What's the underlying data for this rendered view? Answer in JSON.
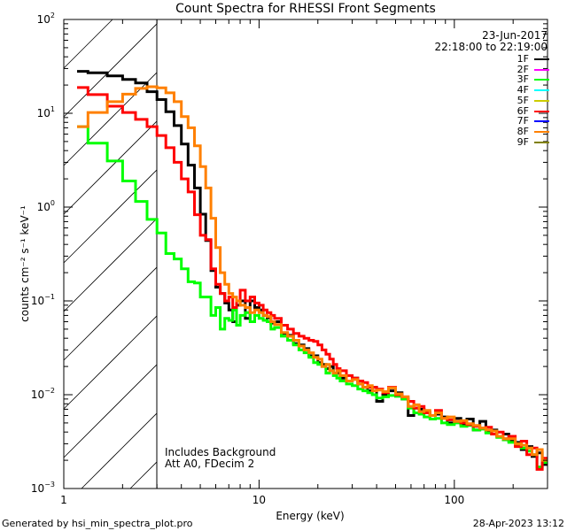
{
  "chart_data": {
    "type": "line",
    "title": "Count Spectra for RHESSI Front Segments",
    "xlabel": "Energy (keV)",
    "ylabel": "counts cm⁻² s⁻¹ keV⁻¹",
    "xscale": "log",
    "yscale": "log",
    "xlim": [
      1,
      300
    ],
    "ylim": [
      0.001,
      100
    ],
    "x_ticks": [
      "1",
      "10",
      "100"
    ],
    "y_ticks": [
      {
        "base": "10",
        "exp": "2"
      },
      {
        "base": "10",
        "exp": "1"
      },
      {
        "base": "10",
        "exp": "0"
      },
      {
        "base": "10",
        "exp": "−1"
      },
      {
        "base": "10",
        "exp": "−2"
      },
      {
        "base": "10",
        "exp": "−3"
      }
    ],
    "date": "23-Jun-2017",
    "time_range": "22:18:00 to 22:19:00",
    "annotations": [
      "Includes Background",
      "Att A0, FDecim 2"
    ],
    "excluded_region_keV": [
      1,
      3
    ],
    "energy_edges": [
      1.17,
      1.33,
      1.67,
      2.0,
      2.33,
      2.67,
      3.0,
      3.33,
      3.67,
      4.0,
      4.33,
      4.67,
      5.0,
      5.33,
      5.67,
      6.0,
      6.33,
      6.67,
      7.0,
      7.33,
      7.67,
      8.0,
      8.5,
      9,
      9.5,
      10,
      10.5,
      11,
      11.5,
      12,
      13,
      14,
      15,
      16,
      17,
      18,
      19,
      20,
      21,
      22,
      23,
      24,
      25,
      26,
      28,
      30,
      32,
      34,
      36,
      38,
      40,
      43,
      46,
      50,
      54,
      58,
      62,
      66,
      70,
      75,
      80,
      86,
      92,
      100,
      108,
      116,
      125,
      135,
      145,
      155,
      165,
      178,
      190,
      205,
      220,
      235,
      250,
      265,
      282,
      300
    ],
    "legend_position": "top-right",
    "legend": [
      {
        "name": "1F",
        "color": "#000000"
      },
      {
        "name": "2F",
        "color": "#ff00ff"
      },
      {
        "name": "3F",
        "color": "#00ff00"
      },
      {
        "name": "4F",
        "color": "#00ffff"
      },
      {
        "name": "5F",
        "color": "#cccc00"
      },
      {
        "name": "6F",
        "color": "#ff0000"
      },
      {
        "name": "7F",
        "color": "#0000ff"
      },
      {
        "name": "8F",
        "color": "#ff8000"
      },
      {
        "name": "9F",
        "color": "#808000"
      }
    ],
    "series": [
      {
        "name": "1F",
        "color": "#000000",
        "values": [
          28,
          27,
          25,
          23,
          21,
          17,
          14,
          10.4,
          7.4,
          4.7,
          2.8,
          1.6,
          0.84,
          0.44,
          0.21,
          0.14,
          0.12,
          0.095,
          0.08,
          0.06,
          0.09,
          0.1,
          0.065,
          0.1,
          0.085,
          0.08,
          0.07,
          0.066,
          0.058,
          0.06,
          0.045,
          0.043,
          0.035,
          0.034,
          0.031,
          0.026,
          0.026,
          0.022,
          0.021,
          0.019,
          0.02,
          0.017,
          0.017,
          0.015,
          0.014,
          0.015,
          0.013,
          0.012,
          0.011,
          0.012,
          0.0085,
          0.01,
          0.011,
          0.0105,
          0.009,
          0.006,
          0.0072,
          0.007,
          0.0065,
          0.006,
          0.0062,
          0.0058,
          0.005,
          0.0056,
          0.0048,
          0.0055,
          0.0042,
          0.0052,
          0.004,
          0.0042,
          0.0036,
          0.0038,
          0.0032,
          0.0031,
          0.0026,
          0.0028,
          0.0022,
          0.0024,
          0.0018
        ]
      },
      {
        "name": "3F",
        "color": "#00ff00",
        "values": [
          7.2,
          4.8,
          3.1,
          1.9,
          1.15,
          0.74,
          0.53,
          0.32,
          0.28,
          0.22,
          0.16,
          0.155,
          0.11,
          0.11,
          0.07,
          0.085,
          0.05,
          0.065,
          0.062,
          0.08,
          0.055,
          0.07,
          0.075,
          0.06,
          0.07,
          0.065,
          0.062,
          0.06,
          0.05,
          0.052,
          0.042,
          0.038,
          0.034,
          0.03,
          0.028,
          0.025,
          0.022,
          0.021,
          0.02,
          0.017,
          0.018,
          0.016,
          0.015,
          0.014,
          0.013,
          0.0125,
          0.0115,
          0.011,
          0.0105,
          0.01,
          0.0092,
          0.0095,
          0.0098,
          0.0096,
          0.009,
          0.0072,
          0.0064,
          0.0062,
          0.0058,
          0.0055,
          0.0056,
          0.005,
          0.0048,
          0.005,
          0.0046,
          0.0047,
          0.0042,
          0.0043,
          0.0039,
          0.0038,
          0.0035,
          0.0033,
          0.0031,
          0.0029,
          0.0027,
          0.0025,
          0.0023,
          0.0017,
          0.0019
        ]
      },
      {
        "name": "6F",
        "color": "#ff0000",
        "values": [
          18.8,
          15.8,
          11.9,
          10.2,
          8.6,
          7.2,
          5.8,
          4.3,
          3.0,
          2.0,
          1.45,
          0.83,
          0.5,
          0.45,
          0.22,
          0.15,
          0.12,
          0.1,
          0.11,
          0.085,
          0.1,
          0.13,
          0.1,
          0.11,
          0.095,
          0.09,
          0.08,
          0.075,
          0.07,
          0.065,
          0.055,
          0.05,
          0.045,
          0.042,
          0.04,
          0.038,
          0.037,
          0.034,
          0.03,
          0.027,
          0.024,
          0.021,
          0.019,
          0.018,
          0.016,
          0.015,
          0.014,
          0.0135,
          0.012,
          0.012,
          0.0115,
          0.0105,
          0.012,
          0.01,
          0.0095,
          0.0085,
          0.0072,
          0.0075,
          0.0064,
          0.006,
          0.0068,
          0.0056,
          0.0054,
          0.0052,
          0.005,
          0.0048,
          0.0046,
          0.0044,
          0.0045,
          0.0038,
          0.004,
          0.0034,
          0.0036,
          0.0028,
          0.0032,
          0.0023,
          0.0027,
          0.0016,
          0.0021
        ]
      },
      {
        "name": "8F",
        "color": "#ff8000",
        "values": [
          7.2,
          10.2,
          13.3,
          16,
          18.4,
          19.2,
          18.7,
          16.5,
          13.3,
          9.2,
          7,
          4.5,
          2.7,
          1.6,
          0.76,
          0.37,
          0.2,
          0.15,
          0.12,
          0.11,
          0.1,
          0.09,
          0.085,
          0.075,
          0.08,
          0.075,
          0.07,
          0.068,
          0.06,
          0.056,
          0.046,
          0.042,
          0.038,
          0.033,
          0.03,
          0.028,
          0.025,
          0.024,
          0.02,
          0.021,
          0.018,
          0.017,
          0.018,
          0.016,
          0.014,
          0.0145,
          0.013,
          0.012,
          0.0125,
          0.011,
          0.0112,
          0.0108,
          0.0118,
          0.0102,
          0.0095,
          0.0075,
          0.0078,
          0.0066,
          0.0068,
          0.006,
          0.0064,
          0.0056,
          0.0058,
          0.0052,
          0.0053,
          0.0049,
          0.0047,
          0.0044,
          0.0042,
          0.0041,
          0.0036,
          0.0034,
          0.0034,
          0.003,
          0.0029,
          0.0027,
          0.0023,
          0.0026,
          0.002
        ]
      }
    ]
  },
  "footer": {
    "generated_by": "Generated by hsi_min_spectra_plot.pro",
    "timestamp": "28-Apr-2023 13:12"
  }
}
